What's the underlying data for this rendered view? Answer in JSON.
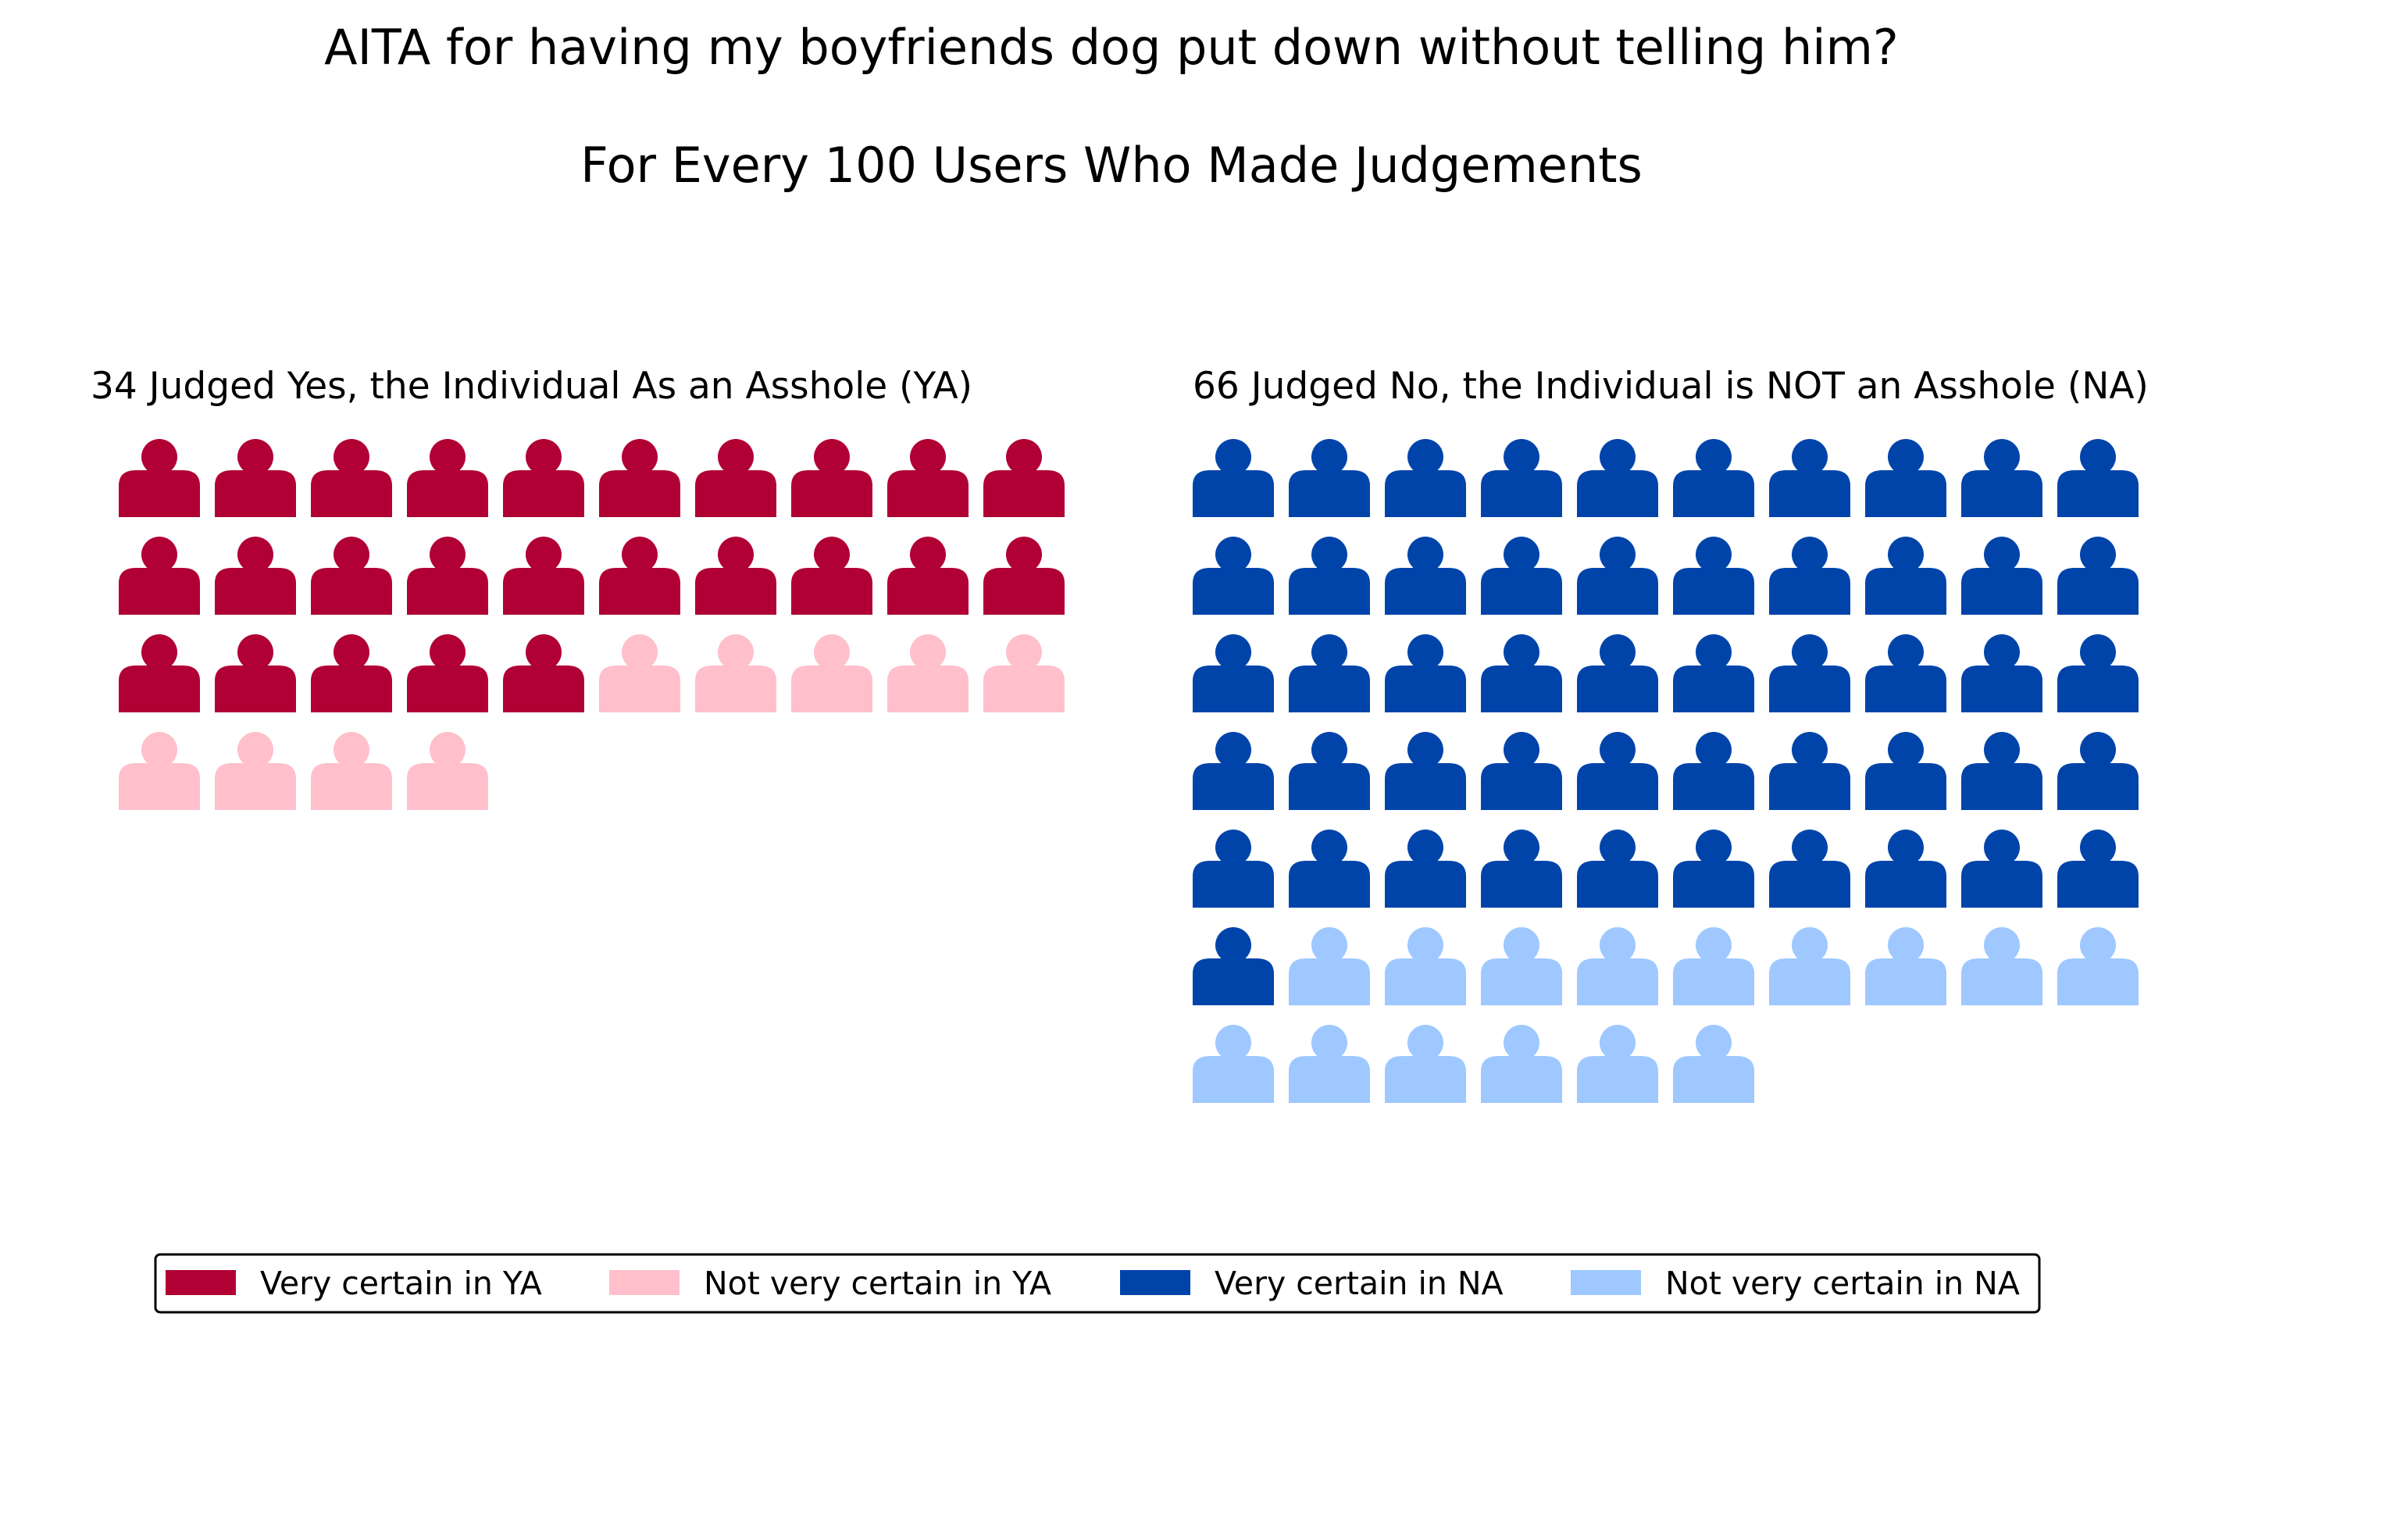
{
  "chart_data": {
    "type": "waffle",
    "title": "AITA for having my boyfriends dog put down without telling him?",
    "subtitle": "For Every 100 Users Who Made Judgements",
    "panels": [
      {
        "title": "34 Judged Yes, the Individual As an Asshole (YA)",
        "total": 34,
        "columns": 10,
        "series": [
          {
            "name": "Very certain in YA",
            "value": 25,
            "color": "#b10034"
          },
          {
            "name": "Not very certain in YA",
            "value": 9,
            "color": "#ffc0cb"
          }
        ]
      },
      {
        "title": "66 Judged No, the Individual is NOT an Asshole (NA)",
        "total": 66,
        "columns": 10,
        "series": [
          {
            "name": "Very certain in NA",
            "value": 51,
            "color": "#0044aa"
          },
          {
            "name": "Not very certain in NA",
            "value": 15,
            "color": "#9ec8ff"
          }
        ]
      }
    ],
    "legend": {
      "placement": "bottom",
      "entries": [
        {
          "label": "Very certain in YA",
          "color": "#b10034"
        },
        {
          "label": "Not very certain in YA",
          "color": "#ffc0cb"
        },
        {
          "label": "Very certain in NA",
          "color": "#0044aa"
        },
        {
          "label": "Not very certain in NA",
          "color": "#9ec8ff"
        }
      ]
    },
    "icon": "person-icon"
  }
}
